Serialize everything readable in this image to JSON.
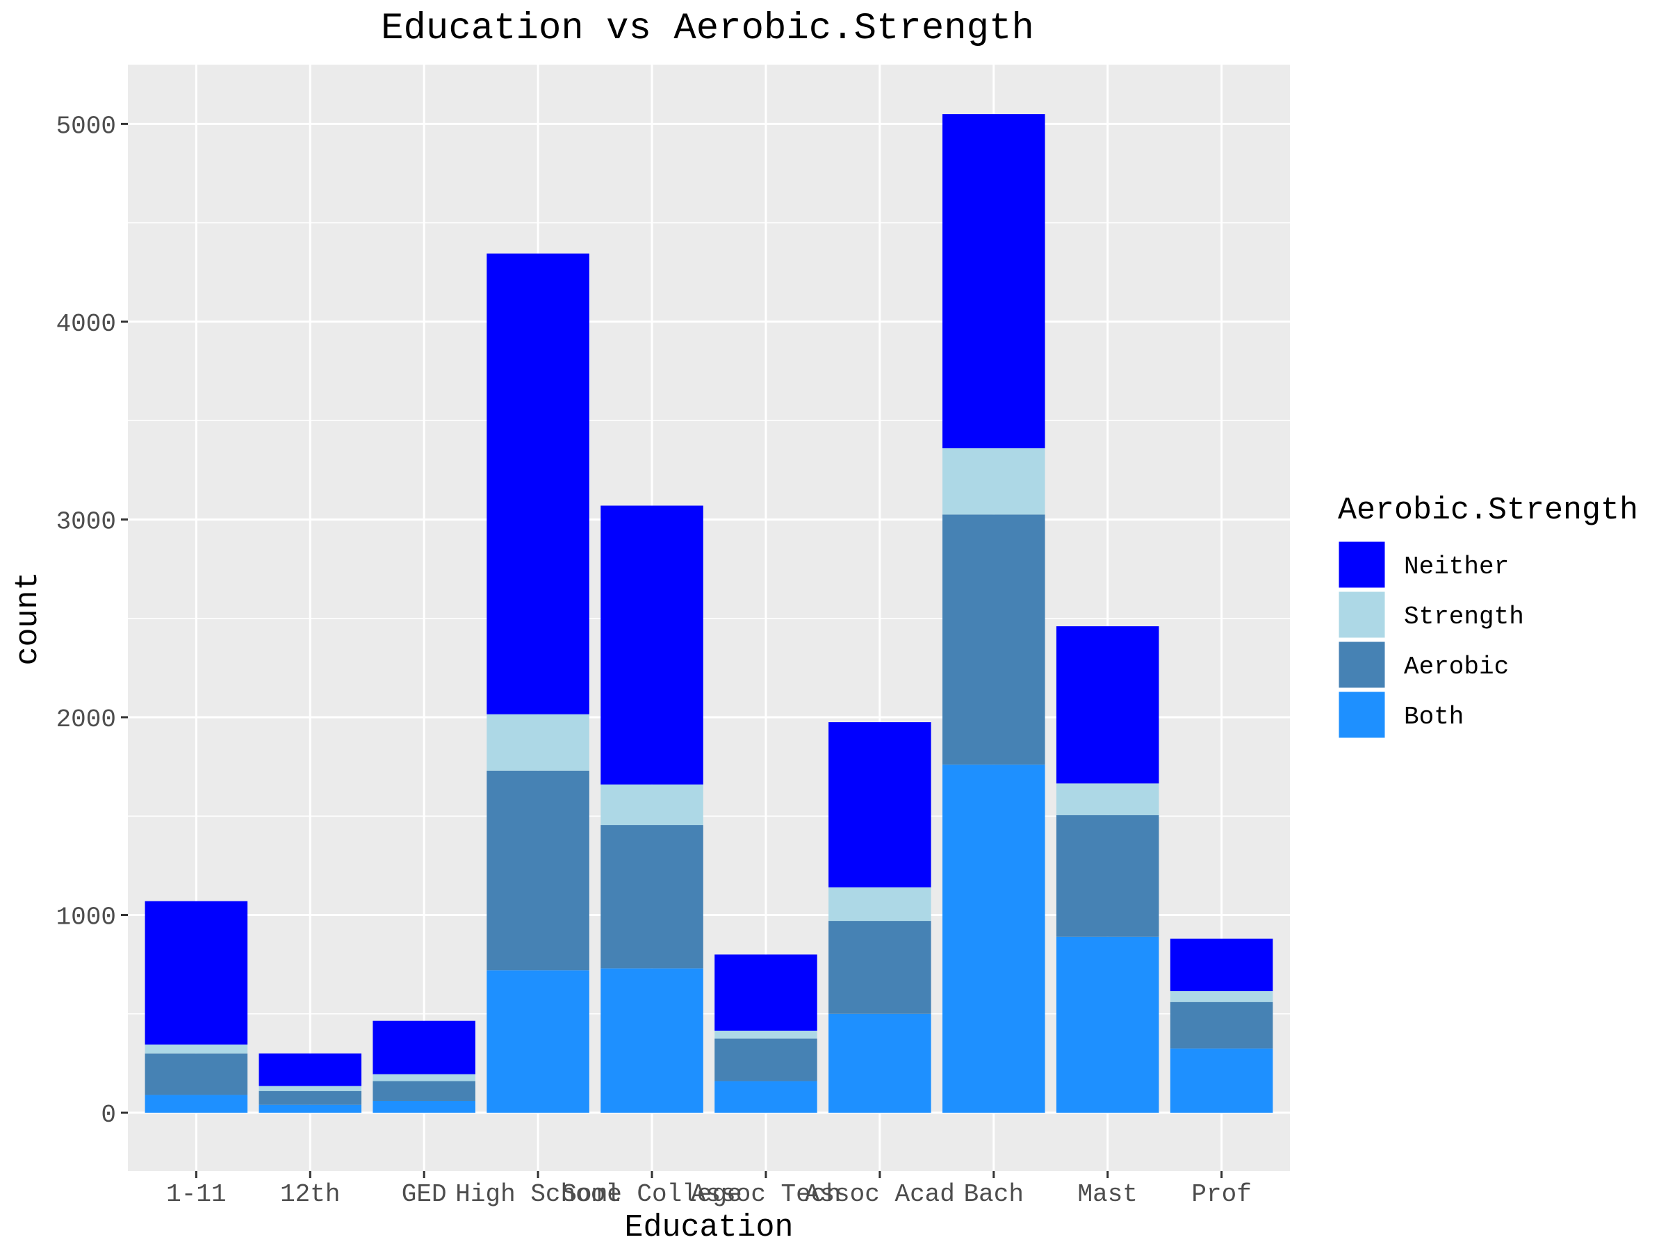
{
  "chart_data": {
    "type": "bar",
    "stacked": true,
    "title": "Education vs Aerobic.Strength",
    "xlabel": "Education",
    "ylabel": "count",
    "ylim": [
      -295,
      5300
    ],
    "yticks": [
      0,
      1000,
      2000,
      3000,
      4000,
      5000
    ],
    "grid": true,
    "legend_position": "right",
    "legend_title": "Aerobic.Strength",
    "categories": [
      "1-11",
      "12th",
      "GED",
      "High School",
      "Some College",
      "Assoc Tech",
      "Assoc Acad",
      "Bach",
      "Mast",
      "Prof"
    ],
    "series": [
      {
        "name": "Both",
        "color": "#1E90FF",
        "values": [
          90,
          40,
          60,
          720,
          730,
          160,
          500,
          1760,
          890,
          325
        ]
      },
      {
        "name": "Aerobic",
        "color": "#4682B4",
        "values": [
          210,
          70,
          100,
          1010,
          725,
          215,
          470,
          1265,
          615,
          235
        ]
      },
      {
        "name": "Strength",
        "color": "#ADD8E6",
        "values": [
          45,
          25,
          35,
          285,
          205,
          40,
          170,
          335,
          160,
          55
        ]
      },
      {
        "name": "Neither",
        "color": "#0000FF",
        "values": [
          725,
          165,
          270,
          2330,
          1410,
          385,
          835,
          1690,
          795,
          265
        ]
      }
    ],
    "legend_order": [
      "Neither",
      "Strength",
      "Aerobic",
      "Both"
    ]
  }
}
